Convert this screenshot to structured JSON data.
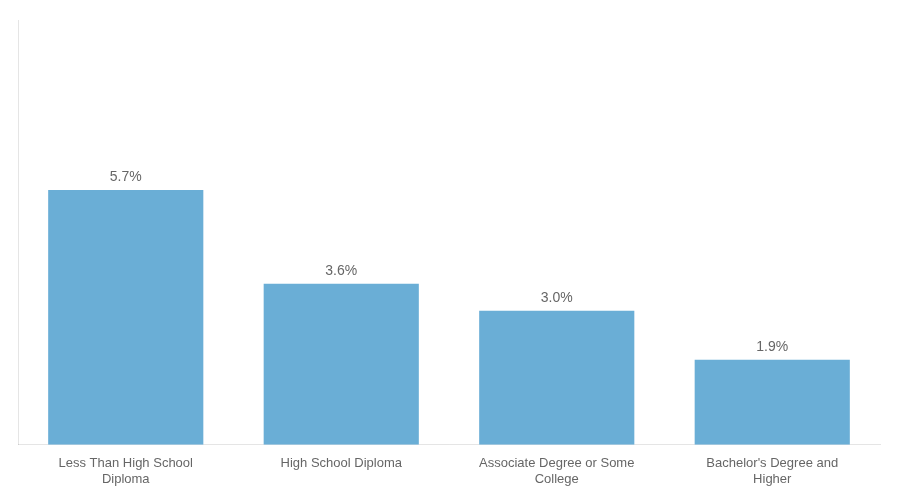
{
  "chart_data": {
    "type": "bar",
    "categories": [
      "Less Than High School\nDiploma",
      "High School Diploma",
      "Associate Degree or Some\nCollege",
      "Bachelor's Degree and\nHigher"
    ],
    "values": [
      5.7,
      3.6,
      3.0,
      1.9
    ],
    "value_labels": [
      "5.7%",
      "3.6%",
      "3.0%",
      "1.9%"
    ],
    "data_labels": true,
    "color": "#6aaed6",
    "ylim": [
      0,
      9.5
    ],
    "grid": false,
    "tick_labels": "x"
  }
}
